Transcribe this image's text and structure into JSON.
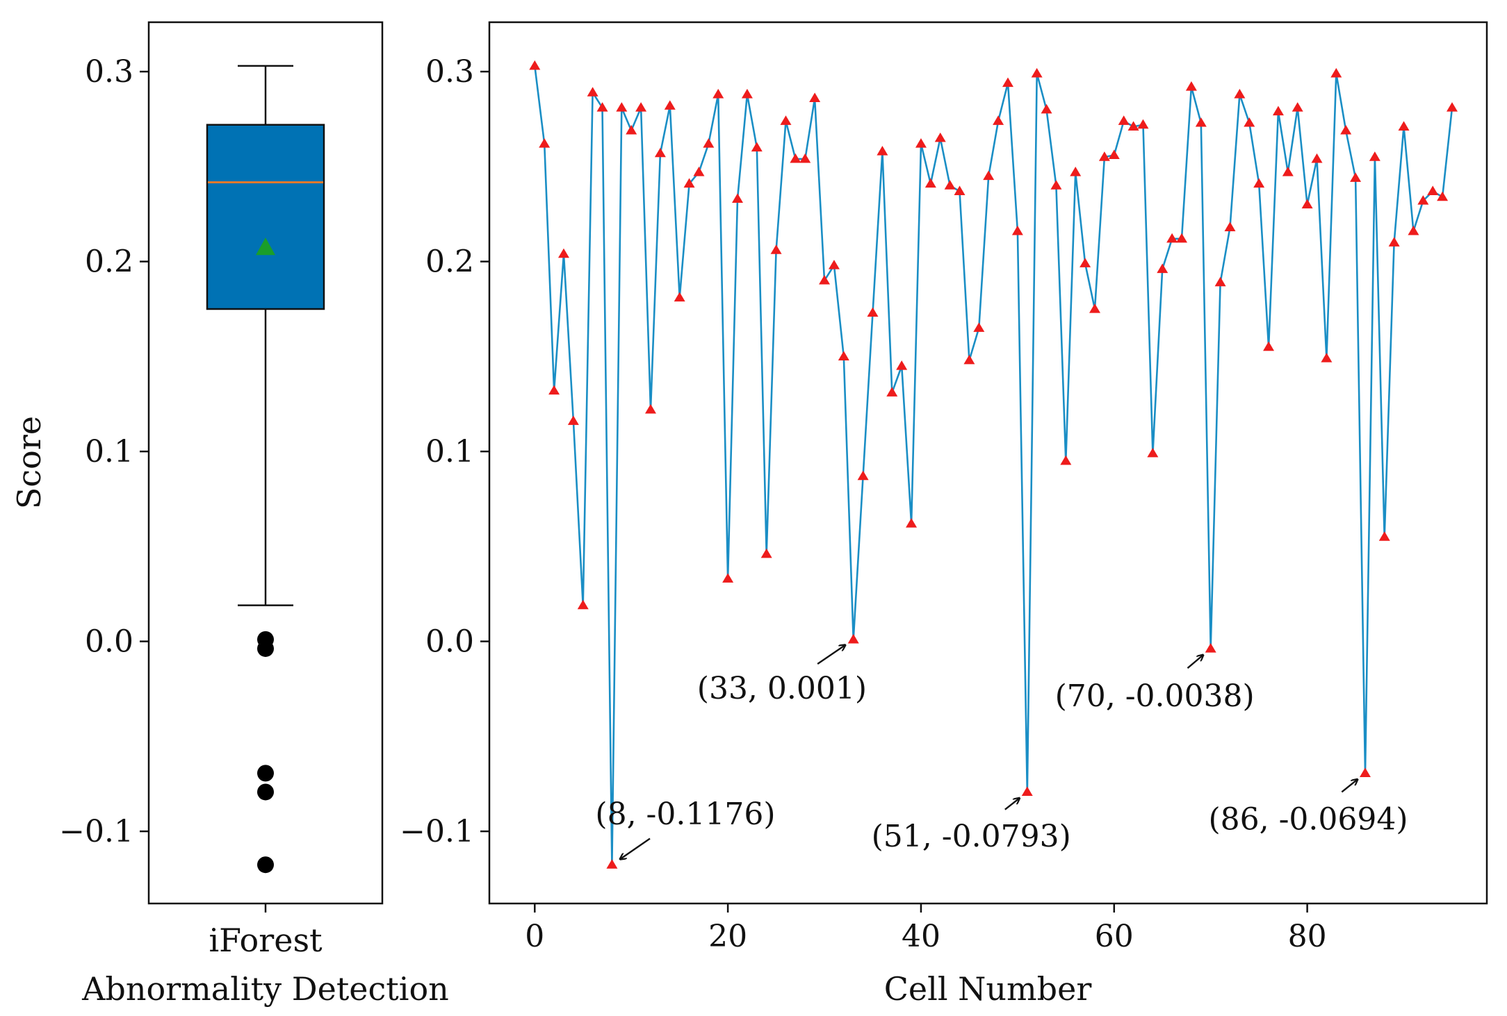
{
  "chart_data": [
    {
      "type": "box",
      "ylabel": "Score",
      "xlabel_lines": [
        "iForest",
        "Abnormality Detection"
      ],
      "ylim": [
        -0.138,
        0.326
      ],
      "yticks": [
        0.3,
        0.2,
        0.1,
        0.0,
        -0.1
      ],
      "ytick_labels": [
        "0.3",
        "0.2",
        "0.1",
        "0.0",
        "−0.1"
      ],
      "stats": {
        "whisker_low": 0.019,
        "q1": 0.175,
        "median": 0.2417,
        "mean": 0.2075,
        "q3": 0.272,
        "whisker_high": 0.303
      },
      "outliers": [
        0.001,
        -0.0038,
        -0.0694,
        -0.0793,
        -0.1176
      ],
      "colors": {
        "box": "#0072b4",
        "median": "#e3792d",
        "mean": "#1a9e2a",
        "outlier": "#000000"
      }
    },
    {
      "type": "line",
      "xlabel": "Cell Number",
      "xlim": [
        -4.7,
        98.6
      ],
      "ylim": [
        -0.138,
        0.326
      ],
      "xticks": [
        0,
        20,
        40,
        60,
        80
      ],
      "xtick_labels": [
        "0",
        "20",
        "40",
        "60",
        "80"
      ],
      "yticks": [
        0.3,
        0.2,
        0.1,
        0.0,
        -0.1
      ],
      "ytick_labels": [
        "0.3",
        "0.2",
        "0.1",
        "0.0",
        "−0.1"
      ],
      "series": [
        {
          "name": "Score",
          "color": "#1a8ec5",
          "marker_color": "#ee1c1c",
          "x": [
            0,
            1,
            2,
            3,
            4,
            5,
            6,
            7,
            8,
            9,
            10,
            11,
            12,
            13,
            14,
            15,
            16,
            17,
            18,
            19,
            20,
            21,
            22,
            23,
            24,
            25,
            26,
            27,
            28,
            29,
            30,
            31,
            32,
            33,
            34,
            35,
            36,
            37,
            38,
            39,
            40,
            41,
            42,
            43,
            44,
            45,
            46,
            47,
            48,
            49,
            50,
            51,
            52,
            53,
            54,
            55,
            56,
            57,
            58,
            59,
            60,
            61,
            62,
            63,
            64,
            65,
            66,
            67,
            68,
            69,
            70,
            71,
            72,
            73,
            74,
            75,
            76,
            77,
            78,
            79,
            80,
            81,
            82,
            83,
            84,
            85,
            86,
            87,
            88,
            89,
            90,
            91,
            92,
            93,
            94,
            95
          ],
          "values": [
            0.303,
            0.262,
            0.132,
            0.204,
            0.116,
            0.019,
            0.289,
            0.281,
            -0.1176,
            0.281,
            0.269,
            0.281,
            0.122,
            0.257,
            0.282,
            0.181,
            0.241,
            0.247,
            0.262,
            0.288,
            0.033,
            0.233,
            0.288,
            0.26,
            0.046,
            0.206,
            0.274,
            0.254,
            0.254,
            0.286,
            0.19,
            0.198,
            0.15,
            0.001,
            0.087,
            0.173,
            0.258,
            0.131,
            0.145,
            0.062,
            0.262,
            0.241,
            0.265,
            0.24,
            0.237,
            0.148,
            0.165,
            0.245,
            0.274,
            0.294,
            0.216,
            -0.0793,
            0.299,
            0.28,
            0.24,
            0.095,
            0.247,
            0.199,
            0.175,
            0.255,
            0.256,
            0.274,
            0.271,
            0.272,
            0.099,
            0.196,
            0.212,
            0.212,
            0.292,
            0.273,
            -0.0038,
            0.189,
            0.218,
            0.288,
            0.273,
            0.241,
            0.155,
            0.279,
            0.247,
            0.281,
            0.23,
            0.254,
            0.149,
            0.299,
            0.269,
            0.244,
            -0.0694,
            0.255,
            0.055,
            0.21,
            0.271,
            0.216,
            0.232,
            0.237,
            0.234,
            0.281
          ]
        }
      ],
      "annotations": [
        {
          "text": "(8, -0.1176)",
          "point": [
            8,
            -0.1176
          ],
          "text_at": [
            15.6,
            -0.0909
          ]
        },
        {
          "text": "(33, 0.001)",
          "point": [
            33,
            0.001
          ],
          "text_at": [
            25.6,
            -0.0246
          ]
        },
        {
          "text": "(51, -0.0793)",
          "point": [
            51,
            -0.0793
          ],
          "text_at": [
            45.2,
            -0.1026
          ]
        },
        {
          "text": "(70, -0.0038)",
          "point": [
            70,
            -0.0038
          ],
          "text_at": [
            64.2,
            -0.0287
          ]
        },
        {
          "text": "(86, -0.0694)",
          "point": [
            86,
            -0.0694
          ],
          "text_at": [
            80.1,
            -0.0935
          ]
        }
      ]
    }
  ]
}
